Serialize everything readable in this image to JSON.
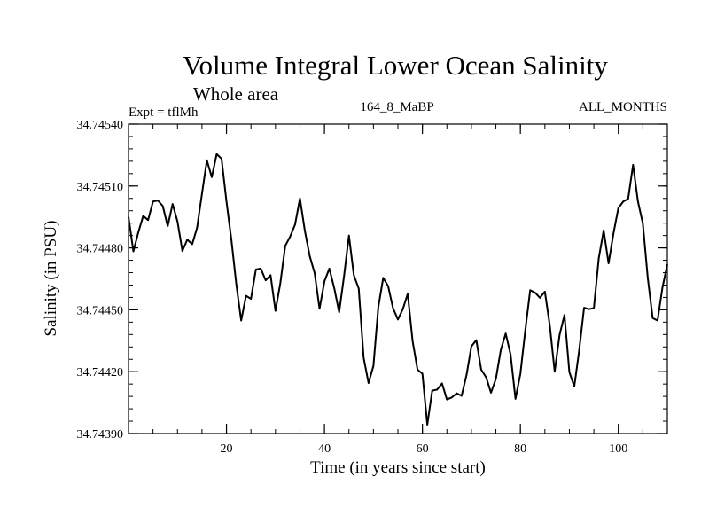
{
  "chart_data": {
    "type": "line",
    "title": "Volume Integral Lower Ocean Salinity",
    "subtitle": "Whole area",
    "expt_label": "Expt = tflMh",
    "run_label": "164_8_MaBP",
    "months_label": "ALL_MONTHS",
    "xlabel": "Time (in years since start)",
    "ylabel": "Salinity (in PSU)",
    "xlim": [
      0,
      110
    ],
    "ylim": [
      34.7439,
      34.7454
    ],
    "xticks": [
      20,
      40,
      60,
      80,
      100
    ],
    "yticks": [
      34.7439,
      34.7442,
      34.7445,
      34.7448,
      34.7451,
      34.7454
    ],
    "ytick_labels": [
      "34.74390",
      "34.74420",
      "34.74450",
      "34.74480",
      "34.74510",
      "34.74540"
    ],
    "series": [
      {
        "name": "Salinity",
        "color": "#000000",
        "x": [
          0,
          1,
          2,
          3,
          4,
          5,
          6,
          7,
          8,
          9,
          10,
          11,
          12,
          13,
          14,
          15,
          16,
          17,
          18,
          19,
          20,
          21,
          22,
          23,
          24,
          25,
          26,
          27,
          28,
          29,
          30,
          31,
          32,
          33,
          34,
          35,
          36,
          37,
          38,
          39,
          40,
          41,
          42,
          43,
          44,
          45,
          46,
          47,
          48,
          49,
          50,
          51,
          52,
          53,
          54,
          55,
          56,
          57,
          58,
          59,
          60,
          61,
          62,
          63,
          64,
          65,
          66,
          67,
          68,
          69,
          70,
          71,
          72,
          73,
          74,
          75,
          76,
          77,
          78,
          79,
          80,
          81,
          82,
          83,
          84,
          85,
          86,
          87,
          88,
          89,
          90,
          91,
          92,
          93,
          94,
          95,
          96,
          97,
          98,
          99,
          100,
          101,
          102,
          103,
          104,
          105,
          106,
          107,
          108,
          109,
          110
        ],
        "values": [
          34.744951,
          34.744783,
          34.744875,
          34.744955,
          34.744935,
          34.745025,
          34.74503,
          34.745003,
          34.744905,
          34.745013,
          34.744928,
          34.744785,
          34.74484,
          34.744818,
          34.744898,
          34.745063,
          34.745225,
          34.745143,
          34.745255,
          34.745232,
          34.745025,
          34.74484,
          34.744625,
          34.744448,
          34.744568,
          34.744553,
          34.744695,
          34.7447,
          34.744643,
          34.744668,
          34.744495,
          34.74463,
          34.74481,
          34.744855,
          34.744913,
          34.74504,
          34.744883,
          34.74476,
          34.744678,
          34.744505,
          34.744638,
          34.7447,
          34.744605,
          34.744488,
          34.744663,
          34.74486,
          34.744668,
          34.744603,
          34.744268,
          34.744145,
          34.744228,
          34.744513,
          34.744655,
          34.744615,
          34.744508,
          34.744453,
          34.744503,
          34.744578,
          34.744348,
          34.74421,
          34.74419,
          34.743943,
          34.744108,
          34.744113,
          34.744143,
          34.744065,
          34.744075,
          34.744095,
          34.744083,
          34.744183,
          34.744323,
          34.744353,
          34.74421,
          34.744173,
          34.744098,
          34.744165,
          34.744305,
          34.744385,
          34.744283,
          34.744068,
          34.74419,
          34.7444,
          34.744595,
          34.744583,
          34.744558,
          34.744588,
          34.744425,
          34.7442,
          34.744378,
          34.744475,
          34.744198,
          34.744128,
          34.744303,
          34.74451,
          34.744503,
          34.744508,
          34.74475,
          34.744885,
          34.744725,
          34.74487,
          34.744993,
          34.745025,
          34.745038,
          34.745203,
          34.745025,
          34.744918,
          34.744655,
          34.74446,
          34.744448,
          34.744608,
          34.74472
        ]
      }
    ]
  }
}
